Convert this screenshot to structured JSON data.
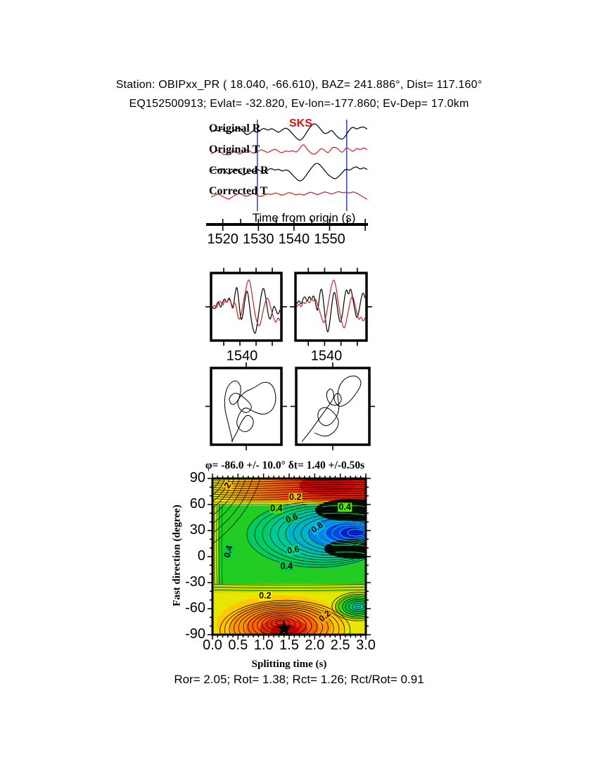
{
  "page": {
    "bg": "#ffffff"
  },
  "header": {
    "line1": "Station: OBIPxx_PR (  18.040,  -66.610), BAZ=  241.886°, Dist=  117.160°",
    "line2": "EQ152500913; Evlat= -32.820, Ev-lon=-177.860; Ev-Dep= 17.0km"
  },
  "footer": {
    "text": "Ror= 2.05; Rot= 1.38; Rct= 1.26; Rct/Rot= 0.91"
  },
  "waveform_section": {
    "phase_label": "SKS",
    "axis_label": "Time from origin (s)",
    "trace_labels": [
      "Original R",
      "Original T",
      "Corrected R",
      "Corrected T"
    ]
  },
  "zoom_panels": [
    {
      "tick_label": "1540"
    },
    {
      "tick_label": "1540"
    }
  ],
  "contour_header": {
    "title": "φ= -86.0 +/- 10.0° δt= 1.40 +/-0.50s"
  },
  "contour_axes": {
    "ylabel": "Fast direction (degree)",
    "xlabel": "Splitting time (s)"
  },
  "chart_data": {
    "type": "composite",
    "panels": [
      {
        "id": "waveforms",
        "type": "line",
        "xlabel": "Time from origin (s)",
        "x_start": 1516.7,
        "x_step": 1.0,
        "xticks": [
          1520,
          1530,
          1540,
          1550,
          1560
        ],
        "xtick_labels": [
          "1520",
          "1530",
          "1540",
          "1550",
          ""
        ],
        "window_s": [
          1529.7,
          1554.8
        ],
        "window_color": "#2233bb",
        "traces": [
          {
            "name": "Original R",
            "color": "#000000",
            "values": [
              0.05,
              0.3,
              0.1,
              0.42,
              0.18,
              -0.22,
              0.05,
              0.36,
              0.5,
              0.12,
              -0.32,
              -0.1,
              0.22,
              -0.08,
              0.3,
              0.45,
              0.18,
              0.45,
              0.22,
              -0.05,
              0.25,
              0.5,
              0.28,
              -0.2,
              -0.62,
              -0.95,
              -0.6,
              0.05,
              0.62,
              1.0,
              0.75,
              0.25,
              -0.18,
              -0.05,
              0.28,
              -0.25,
              -0.65,
              -0.8,
              -0.35,
              0.3,
              0.62,
              0.3,
              0.55,
              0.6,
              0.35
            ]
          },
          {
            "name": "Original T",
            "color": "#cc2222",
            "values": [
              -0.3,
              -0.1,
              0.2,
              -0.25,
              -0.5,
              -0.2,
              0.15,
              -0.1,
              -0.4,
              -0.15,
              0.2,
              0.0,
              -0.3,
              -0.1,
              0.25,
              0.05,
              -0.2,
              0.1,
              0.3,
              0.0,
              -0.25,
              0.1,
              -0.1,
              0.15,
              -0.2,
              0.35,
              1.0,
              0.3,
              -0.2,
              -0.45,
              -0.1,
              0.4,
              0.15,
              -0.3,
              0.45,
              0.55,
              0.2,
              -0.25,
              0.5,
              0.3,
              -0.1,
              0.45,
              0.15,
              0.5,
              0.2
            ]
          },
          {
            "name": "Corrected R",
            "color": "#000000",
            "values": [
              0.15,
              0.38,
              0.2,
              0.45,
              0.15,
              -0.25,
              0.1,
              0.4,
              0.2,
              -0.35,
              -0.1,
              0.25,
              0.0,
              0.35,
              0.15,
              -0.2,
              0.3,
              0.45,
              0.2,
              0.4,
              0.1,
              0.3,
              0.15,
              -0.3,
              -0.7,
              -1.0,
              -0.75,
              -0.2,
              0.35,
              0.85,
              1.05,
              0.7,
              0.2,
              -0.25,
              -0.55,
              -0.75,
              -0.45,
              0.0,
              0.4,
              0.2,
              0.5,
              0.65,
              0.3,
              0.55,
              0.3
            ]
          },
          {
            "name": "Corrected T",
            "color": "#cc2222",
            "values": [
              -0.45,
              -0.2,
              0.1,
              -0.3,
              -0.55,
              -0.85,
              -0.4,
              -0.1,
              0.2,
              -0.15,
              -0.35,
              -0.1,
              0.15,
              -0.2,
              -0.4,
              -0.15,
              0.1,
              -0.1,
              0.25,
              0.05,
              -0.2,
              0.05,
              0.3,
              0.1,
              -0.15,
              0.1,
              -0.2,
              0.1,
              0.35,
              0.15,
              -0.1,
              0.15,
              0.4,
              0.2,
              0.0,
              0.25,
              0.45,
              0.2,
              0.35,
              0.15,
              0.4,
              0.2,
              -0.15,
              -0.5,
              -0.8
            ]
          }
        ]
      },
      {
        "id": "window_zoom",
        "type": "line",
        "xtick": "1540",
        "subpanels": [
          {
            "series": [
              {
                "color": "#000000",
                "values": [
                  0.0,
                  -0.12,
                  0.08,
                  0.22,
                  -0.08,
                  0.18,
                  0.32,
                  0.1,
                  0.36,
                  0.18,
                  -0.15,
                  0.45,
                  0.8,
                  0.1,
                  -0.55,
                  -0.25,
                  0.35,
                  0.65,
                  0.1,
                  -0.5,
                  -0.85,
                  -1.0,
                  -0.55,
                  0.0,
                  0.5,
                  0.72,
                  0.35,
                  -0.18,
                  -0.5,
                  -0.28,
                  0.08,
                  -0.12,
                  -0.3,
                  -0.1
                ]
              },
              {
                "color": "#cc2222",
                "values": [
                  -0.05,
                  0.1,
                  -0.08,
                  0.15,
                  0.22,
                  0.0,
                  0.25,
                  0.12,
                  0.3,
                  0.15,
                  0.0,
                  0.2,
                  -0.18,
                  -0.5,
                  -0.3,
                  0.12,
                  0.5,
                  0.88,
                  1.0,
                  0.62,
                  0.1,
                  -0.35,
                  -0.6,
                  -0.72,
                  -0.42,
                  -0.05,
                  0.22,
                  0.35,
                  0.08,
                  -0.18,
                  -0.42,
                  -0.6,
                  -0.35,
                  -0.5
                ]
              }
            ]
          },
          {
            "series": [
              {
                "color": "#000000",
                "values": [
                  0.1,
                  0.28,
                  0.05,
                  0.3,
                  0.38,
                  0.15,
                  0.42,
                  0.2,
                  0.45,
                  0.15,
                  -0.25,
                  0.45,
                  0.72,
                  0.1,
                  -0.62,
                  -1.0,
                  -0.5,
                  0.15,
                  0.6,
                  0.3,
                  -0.3,
                  -0.62,
                  -0.3,
                  0.32,
                  0.68,
                  0.38,
                  0.72,
                  0.3,
                  -0.12,
                  -0.45,
                  -0.18,
                  0.28,
                  0.55,
                  0.3
                ]
              },
              {
                "color": "#cc2222",
                "values": [
                  0.0,
                  0.15,
                  -0.05,
                  0.2,
                  0.08,
                  0.25,
                  0.1,
                  0.3,
                  0.18,
                  0.32,
                  0.05,
                  -0.15,
                  -0.4,
                  -0.62,
                  -0.38,
                  0.05,
                  0.48,
                  0.85,
                  1.0,
                  0.68,
                  0.15,
                  -0.32,
                  -0.65,
                  -0.8,
                  -0.48,
                  -0.1,
                  0.28,
                  0.4,
                  0.12,
                  -0.22,
                  -0.5,
                  -0.32,
                  -0.55,
                  -0.38
                ]
              }
            ]
          }
        ]
      },
      {
        "id": "particle_motion",
        "type": "path",
        "paths": [
          [
            [
              0.3,
              0.98
            ],
            [
              0.24,
              0.75
            ],
            [
              0.17,
              0.5
            ],
            [
              0.2,
              0.25
            ],
            [
              0.33,
              0.13
            ],
            [
              0.43,
              0.22
            ],
            [
              0.4,
              0.4
            ],
            [
              0.3,
              0.5
            ],
            [
              0.23,
              0.4
            ],
            [
              0.33,
              0.3
            ],
            [
              0.47,
              0.38
            ],
            [
              0.6,
              0.5
            ],
            [
              0.52,
              0.6
            ],
            [
              0.4,
              0.55
            ],
            [
              0.36,
              0.42
            ],
            [
              0.48,
              0.3
            ],
            [
              0.62,
              0.25
            ],
            [
              0.76,
              0.16
            ],
            [
              0.89,
              0.2
            ],
            [
              0.95,
              0.38
            ],
            [
              0.9,
              0.55
            ],
            [
              0.76,
              0.62
            ],
            [
              0.6,
              0.57
            ],
            [
              0.48,
              0.5
            ],
            [
              0.38,
              0.62
            ],
            [
              0.35,
              0.76
            ],
            [
              0.46,
              0.86
            ],
            [
              0.58,
              0.81
            ],
            [
              0.62,
              0.68
            ],
            [
              0.52,
              0.6
            ],
            [
              0.43,
              0.7
            ],
            [
              0.36,
              0.86
            ],
            [
              0.28,
              0.98
            ]
          ],
          [
            [
              0.06,
              0.98
            ],
            [
              0.18,
              0.84
            ],
            [
              0.32,
              0.65
            ],
            [
              0.45,
              0.48
            ],
            [
              0.53,
              0.36
            ],
            [
              0.48,
              0.24
            ],
            [
              0.4,
              0.32
            ],
            [
              0.44,
              0.46
            ],
            [
              0.55,
              0.5
            ],
            [
              0.64,
              0.42
            ],
            [
              0.58,
              0.3
            ],
            [
              0.5,
              0.38
            ],
            [
              0.58,
              0.52
            ],
            [
              0.72,
              0.46
            ],
            [
              0.84,
              0.32
            ],
            [
              0.92,
              0.18
            ],
            [
              0.84,
              0.08
            ],
            [
              0.7,
              0.1
            ],
            [
              0.6,
              0.2
            ],
            [
              0.56,
              0.35
            ],
            [
              0.6,
              0.52
            ],
            [
              0.54,
              0.68
            ],
            [
              0.42,
              0.78
            ],
            [
              0.3,
              0.72
            ],
            [
              0.28,
              0.57
            ],
            [
              0.38,
              0.5
            ],
            [
              0.5,
              0.56
            ],
            [
              0.6,
              0.7
            ],
            [
              0.54,
              0.84
            ],
            [
              0.4,
              0.92
            ],
            [
              0.24,
              0.86
            ]
          ]
        ]
      },
      {
        "id": "energy_map",
        "type": "contour",
        "title": "φ= -86.0 +/- 10.0° δt= 1.40 +/-0.50s",
        "xlabel": "Splitting time (s)",
        "ylabel": "Fast direction (degree)",
        "xlim": [
          0,
          3
        ],
        "ylim": [
          -90,
          90
        ],
        "xticks": [
          "0.0",
          "0.5",
          "1.0",
          "1.5",
          "2.0",
          "2.5",
          "3.0"
        ],
        "yticks": [
          90,
          60,
          30,
          0,
          -30,
          -60,
          -90
        ],
        "best_phi": -86.0,
        "phi_err": 10.0,
        "best_dt": 1.4,
        "dt_err": 0.5,
        "star": {
          "t": 1.4,
          "deg": -86
        },
        "labels": [
          {
            "text": "2",
            "t": 0.3,
            "deg": 82,
            "rot": -60,
            "bg": "#ffbb00"
          },
          {
            "text": "0.2",
            "t": 1.62,
            "deg": 68,
            "rot": 0,
            "bg": "#ffbb00"
          },
          {
            "text": "0.4",
            "t": 1.25,
            "deg": 55,
            "rot": 0,
            "bg": "#55dd00"
          },
          {
            "text": "0.4",
            "t": 2.59,
            "deg": 57,
            "rot": 0,
            "bg": "#55ee00"
          },
          {
            "text": "0.6",
            "t": 1.55,
            "deg": 44,
            "rot": -20,
            "bg": "#00cc66"
          },
          {
            "text": "0.8",
            "t": 2.05,
            "deg": 33,
            "rot": -35,
            "bg": "#00bbee"
          },
          {
            "text": "0.4",
            "t": 0.31,
            "deg": 6,
            "rot": -75,
            "bg": "#00cc44"
          },
          {
            "text": "0.6",
            "t": 1.58,
            "deg": 7,
            "rot": -10,
            "bg": "#00dd88"
          },
          {
            "text": "0.4",
            "t": 1.45,
            "deg": -11,
            "rot": 0,
            "bg": "#00cc44"
          },
          {
            "text": "0.2",
            "t": 1.03,
            "deg": -45,
            "rot": 0,
            "bg": "#ffee00"
          },
          {
            "text": "0.2",
            "t": 2.2,
            "deg": -69,
            "rot": -40,
            "bg": "#ffaa00"
          }
        ]
      }
    ]
  }
}
